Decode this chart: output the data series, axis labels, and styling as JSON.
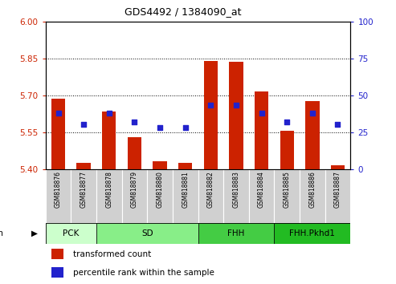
{
  "title": "GDS4492 / 1384090_at",
  "samples": [
    "GSM818876",
    "GSM818877",
    "GSM818878",
    "GSM818879",
    "GSM818880",
    "GSM818881",
    "GSM818882",
    "GSM818883",
    "GSM818884",
    "GSM818885",
    "GSM818886",
    "GSM818887"
  ],
  "bar_values": [
    5.685,
    5.425,
    5.635,
    5.53,
    5.43,
    5.425,
    5.838,
    5.835,
    5.715,
    5.555,
    5.675,
    5.415
  ],
  "bar_bottom": 5.4,
  "percentile_values": [
    38,
    30,
    38,
    32,
    28,
    28,
    43,
    43,
    38,
    32,
    38,
    30
  ],
  "ylim_left": [
    5.4,
    6.0
  ],
  "ylim_right": [
    0,
    100
  ],
  "yticks_left": [
    5.4,
    5.55,
    5.7,
    5.85,
    6.0
  ],
  "yticks_right": [
    0,
    25,
    50,
    75,
    100
  ],
  "hlines": [
    5.55,
    5.7,
    5.85
  ],
  "bar_color": "#cc2200",
  "dot_color": "#2222cc",
  "strain_ranges": [
    {
      "label": "PCK",
      "start": 0,
      "end": 1,
      "color": "#ccffcc"
    },
    {
      "label": "SD",
      "start": 2,
      "end": 5,
      "color": "#88ee88"
    },
    {
      "label": "FHH",
      "start": 6,
      "end": 8,
      "color": "#44cc44"
    },
    {
      "label": "FHH.Pkhd1",
      "start": 9,
      "end": 11,
      "color": "#22bb22"
    }
  ],
  "legend_bar_label": "transformed count",
  "legend_dot_label": "percentile rank within the sample",
  "tick_label_color_left": "#cc2200",
  "tick_label_color_right": "#2222cc"
}
